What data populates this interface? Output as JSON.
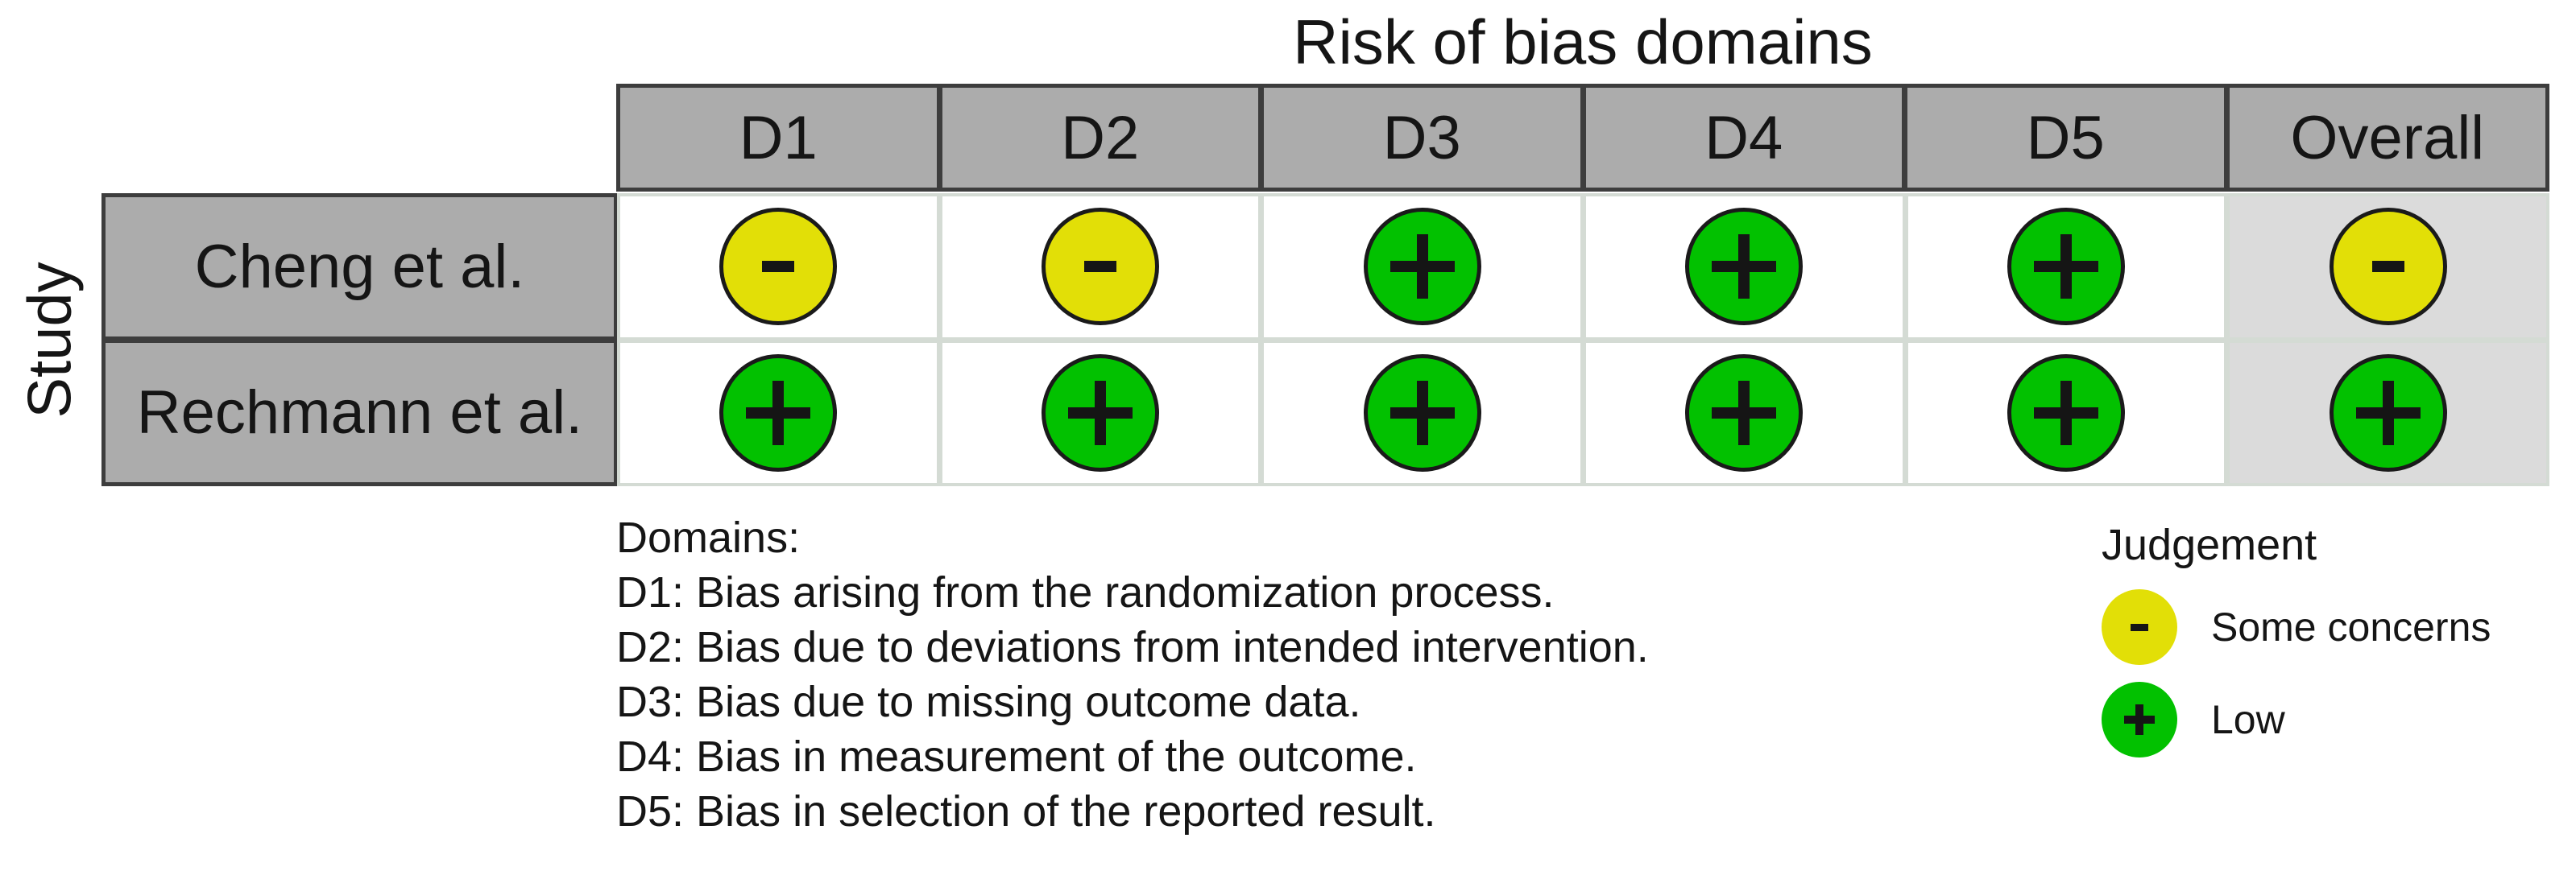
{
  "figure": {
    "title": "Risk of bias domains",
    "y_axis_label": "Study"
  },
  "table": {
    "columns": [
      "D1",
      "D2",
      "D3",
      "D4",
      "D5",
      "Overall"
    ],
    "rows": [
      {
        "study": "Cheng et al.",
        "judgements": [
          "some_concerns",
          "some_concerns",
          "low",
          "low",
          "low",
          "some_concerns"
        ]
      },
      {
        "study": "Rechmann et al.",
        "judgements": [
          "low",
          "low",
          "low",
          "low",
          "low",
          "low"
        ]
      }
    ]
  },
  "judgement_styles": {
    "low": {
      "label": "Low",
      "symbol": "plus-icon",
      "color": "#02C100"
    },
    "some_concerns": {
      "label": "Some concerns",
      "symbol": "minus-icon",
      "color": "#E2DF07"
    }
  },
  "legend": {
    "heading": "Judgement",
    "items": [
      {
        "judgement": "some_concerns",
        "label": "Some concerns"
      },
      {
        "judgement": "low",
        "label": "Low"
      }
    ]
  },
  "domains_note": {
    "heading": "Domains:",
    "lines": [
      "D1: Bias arising from the randomization process.",
      "D2: Bias due to deviations from intended intervention.",
      "D3: Bias due to missing outcome data.",
      "D4: Bias in measurement of the outcome.",
      "D5: Bias in selection of the reported result."
    ]
  },
  "colors": {
    "judgement_low": "#02C100",
    "judgement_some_concerns": "#E2DF07",
    "header_fill": "#ACACAC",
    "frame": "#3D3D3D",
    "overall_column_fill": "#DBDBDB",
    "grid_line": "#D4DBD4",
    "ink": "#151515",
    "background": "#FFFFFF"
  },
  "chart_data": {
    "type": "table",
    "title": "Risk of bias domains",
    "ylabel": "Study",
    "columns": [
      "D1",
      "D2",
      "D3",
      "D4",
      "D5",
      "Overall"
    ],
    "rows": [
      "Cheng et al.",
      "Rechmann et al."
    ],
    "values": [
      [
        "Some concerns",
        "Some concerns",
        "Low",
        "Low",
        "Low",
        "Some concerns"
      ],
      [
        "Low",
        "Low",
        "Low",
        "Low",
        "Low",
        "Low"
      ]
    ],
    "legend": [
      {
        "label": "Some concerns",
        "symbol": "-",
        "color": "#E2DF07"
      },
      {
        "label": "Low",
        "symbol": "+",
        "color": "#02C100"
      }
    ],
    "legend_position": "bottom-right",
    "notes": [
      "D1: Bias arising from the randomization process.",
      "D2: Bias due to deviations from intended intervention.",
      "D3: Bias due to missing outcome data.",
      "D4: Bias in measurement of the outcome.",
      "D5: Bias in selection of the reported result."
    ]
  }
}
